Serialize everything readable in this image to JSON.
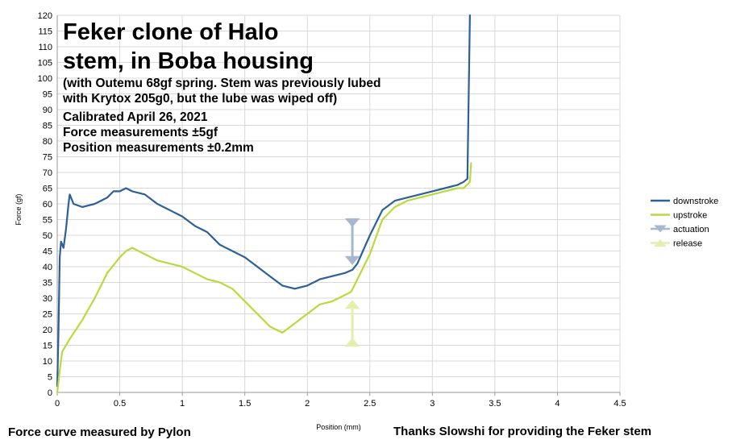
{
  "chart_data": {
    "type": "line",
    "title": [
      "Feker clone of Halo",
      "stem, in Boba housing"
    ],
    "subtitle": [
      "(with Outemu 68gf spring. Stem was previously lubed",
      "with Krytox 205g0, but the lube was wiped off)",
      "Calibrated April 26, 2021",
      "Force measurements ±5gf",
      "Position measurements ±0.2mm"
    ],
    "xlabel": "Position (mm)",
    "ylabel": "Force (gf)",
    "xlim": [
      0,
      4.5
    ],
    "ylim": [
      0,
      120
    ],
    "xticks": [
      "0",
      "0.5",
      "1",
      "1.5",
      "2",
      "2.5",
      "3",
      "3.5",
      "4",
      "4.5"
    ],
    "yticks": [
      "0",
      "5",
      "10",
      "15",
      "20",
      "25",
      "30",
      "35",
      "40",
      "45",
      "50",
      "55",
      "60",
      "65",
      "70",
      "75",
      "80",
      "85",
      "90",
      "95",
      "100",
      "105",
      "110",
      "115",
      "120"
    ],
    "grid": true,
    "legend_position": "right",
    "series": [
      {
        "name": "downstroke",
        "color": "#2e5f96",
        "points": [
          [
            0,
            2
          ],
          [
            0.01,
            20
          ],
          [
            0.02,
            43
          ],
          [
            0.03,
            48
          ],
          [
            0.05,
            46
          ],
          [
            0.07,
            52
          ],
          [
            0.09,
            60
          ],
          [
            0.1,
            63
          ],
          [
            0.11,
            62
          ],
          [
            0.13,
            60
          ],
          [
            0.2,
            59
          ],
          [
            0.3,
            60
          ],
          [
            0.4,
            62
          ],
          [
            0.45,
            64
          ],
          [
            0.5,
            64
          ],
          [
            0.55,
            65
          ],
          [
            0.6,
            64
          ],
          [
            0.7,
            63
          ],
          [
            0.8,
            60
          ],
          [
            0.9,
            58
          ],
          [
            1.0,
            56
          ],
          [
            1.1,
            53
          ],
          [
            1.2,
            51
          ],
          [
            1.3,
            47
          ],
          [
            1.4,
            45
          ],
          [
            1.5,
            43
          ],
          [
            1.6,
            40
          ],
          [
            1.7,
            37
          ],
          [
            1.8,
            34
          ],
          [
            1.9,
            33
          ],
          [
            2.0,
            34
          ],
          [
            2.1,
            36
          ],
          [
            2.2,
            37
          ],
          [
            2.3,
            38
          ],
          [
            2.36,
            39
          ],
          [
            2.4,
            41
          ],
          [
            2.5,
            50
          ],
          [
            2.6,
            58
          ],
          [
            2.7,
            61
          ],
          [
            2.8,
            62
          ],
          [
            2.9,
            63
          ],
          [
            3.0,
            64
          ],
          [
            3.1,
            65
          ],
          [
            3.2,
            66
          ],
          [
            3.25,
            67
          ],
          [
            3.28,
            68
          ],
          [
            3.3,
            120
          ]
        ]
      },
      {
        "name": "upstroke",
        "color": "#b9da3d",
        "points": [
          [
            0,
            0
          ],
          [
            0.02,
            7
          ],
          [
            0.04,
            13
          ],
          [
            0.07,
            15
          ],
          [
            0.1,
            17
          ],
          [
            0.2,
            23
          ],
          [
            0.3,
            30
          ],
          [
            0.35,
            34
          ],
          [
            0.4,
            38
          ],
          [
            0.5,
            43
          ],
          [
            0.55,
            45
          ],
          [
            0.6,
            46
          ],
          [
            0.7,
            44
          ],
          [
            0.8,
            42
          ],
          [
            0.9,
            41
          ],
          [
            1.0,
            40
          ],
          [
            1.1,
            38
          ],
          [
            1.2,
            36
          ],
          [
            1.3,
            35
          ],
          [
            1.4,
            33
          ],
          [
            1.5,
            29
          ],
          [
            1.6,
            25
          ],
          [
            1.7,
            21
          ],
          [
            1.8,
            19
          ],
          [
            1.9,
            22
          ],
          [
            2.0,
            25
          ],
          [
            2.1,
            28
          ],
          [
            2.2,
            29
          ],
          [
            2.3,
            31
          ],
          [
            2.35,
            32
          ],
          [
            2.4,
            36
          ],
          [
            2.5,
            44
          ],
          [
            2.6,
            55
          ],
          [
            2.7,
            59
          ],
          [
            2.8,
            61
          ],
          [
            2.9,
            62
          ],
          [
            3.0,
            63
          ],
          [
            3.1,
            64
          ],
          [
            3.2,
            65
          ],
          [
            3.25,
            65
          ],
          [
            3.3,
            67
          ],
          [
            3.31,
            73
          ]
        ]
      },
      {
        "name": "actuation",
        "color": "#a7b7cf",
        "marker": "triangle-down",
        "points": [
          [
            2.36,
            54
          ],
          [
            2.36,
            42
          ]
        ]
      },
      {
        "name": "release",
        "color": "#e4eeae",
        "marker": "triangle-up",
        "points": [
          [
            2.36,
            16
          ],
          [
            2.36,
            28
          ]
        ]
      }
    ]
  },
  "footer": {
    "left": "Force curve measured by Pylon",
    "right": "Thanks Slowshi for providing the Feker stem"
  }
}
